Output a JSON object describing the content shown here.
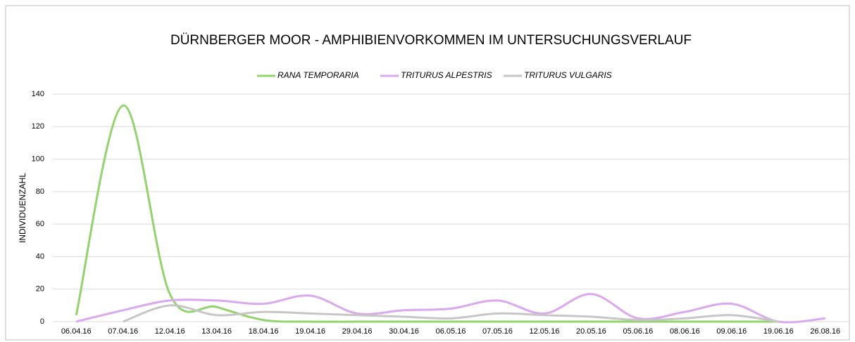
{
  "chart_data": {
    "type": "line",
    "title": "DÜRNBERGER MOOR - AMPHIBIENVORKOMMEN IM UNTERSUCHUNGSVERLAUF",
    "y_label": "INDIVIDUENZAHL",
    "categories": [
      "06.04.16",
      "07.04.16",
      "12.04.16",
      "13.04.16",
      "18.04.16",
      "19.04.16",
      "29.04.16",
      "30.04.16",
      "06.05.16",
      "07.05.16",
      "12.05.16",
      "20.05.16",
      "05.06.16",
      "08.06.16",
      "09.06.16",
      "19.06.16",
      "26.08.16"
    ],
    "series": [
      {
        "name": "RANA TEMPORARIA",
        "color": "#92d36e",
        "values": [
          4,
          133,
          17,
          9,
          1,
          0,
          0,
          0,
          0,
          0,
          0,
          0,
          0,
          0,
          0,
          0,
          null
        ]
      },
      {
        "name": "TRITURUS ALPESTRIS",
        "color": "#dba8ef",
        "values": [
          0,
          7,
          13,
          13,
          11,
          16,
          5,
          7,
          8,
          13,
          5,
          17,
          2,
          6,
          11,
          0,
          2
        ]
      },
      {
        "name": "TRITURUS VULGARIS",
        "color": "#c6c6c6",
        "values": [
          null,
          0,
          10,
          4,
          6,
          5,
          4,
          3,
          2,
          5,
          4,
          3,
          1,
          2,
          4,
          0,
          null
        ]
      }
    ],
    "ylim": [
      0,
      140
    ],
    "yticks": [
      0,
      20,
      40,
      60,
      80,
      100,
      120,
      140
    ],
    "grid": true,
    "legend": "top"
  }
}
